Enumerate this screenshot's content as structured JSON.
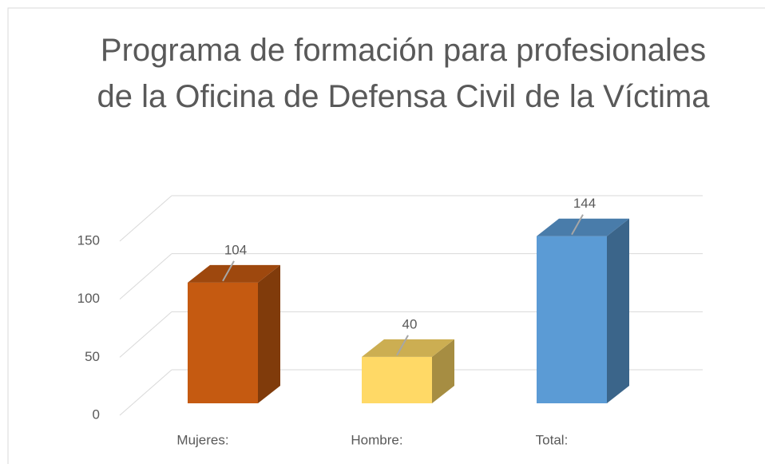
{
  "chart_data": {
    "type": "bar3d",
    "title": "Programa de formación para profesionales de la Oficina de Defensa Civil de la Víctima",
    "categories": [
      "Mujeres:",
      "Hombre:",
      "Total:"
    ],
    "values": [
      104,
      40,
      144
    ],
    "colors": [
      "#c55a11",
      "#ffd966",
      "#5b9bd5"
    ],
    "ylim": [
      0,
      150
    ],
    "yticks": [
      0,
      50,
      100,
      150
    ],
    "grid": true
  }
}
